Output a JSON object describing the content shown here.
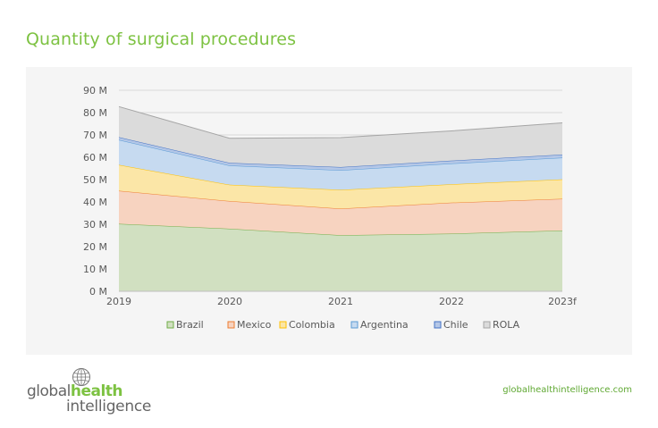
{
  "title": "Quantity of surgical procedures",
  "footer": {
    "logo_prefix": "global",
    "logo_emphasis": "health",
    "logo_second_line": "intelligence",
    "url": "globalhealthintelligence.com"
  },
  "chart_data": {
    "type": "area",
    "stacked": true,
    "categories": [
      "2019",
      "2020",
      "2021",
      "2022",
      "2023f"
    ],
    "ylim": [
      0,
      90
    ],
    "yticks": [
      "0 M",
      "10 M",
      "20 M",
      "30 M",
      "40 M",
      "50 M",
      "60 M",
      "70 M",
      "80 M",
      "90 M"
    ],
    "legend_position": "bottom",
    "grid": true,
    "series": [
      {
        "name": "Brazil",
        "values": [
          30.2,
          28.0,
          25.1,
          25.8,
          27.2
        ],
        "fill": "#d1e0c1",
        "stroke": "#70ad47"
      },
      {
        "name": "Mexico",
        "values": [
          14.8,
          12.4,
          11.9,
          13.9,
          14.2
        ],
        "fill": "#f7d3c0",
        "stroke": "#ed7d31"
      },
      {
        "name": "Colombia",
        "values": [
          11.6,
          7.3,
          8.4,
          8.2,
          8.7
        ],
        "fill": "#fbe6a7",
        "stroke": "#ffc000"
      },
      {
        "name": "Argentina",
        "values": [
          11.2,
          8.6,
          8.8,
          9.3,
          9.7
        ],
        "fill": "#c6daf0",
        "stroke": "#5b9bd5"
      },
      {
        "name": "Chile",
        "values": [
          1.2,
          1.2,
          1.4,
          1.3,
          1.4
        ],
        "fill": "#b4c7e7",
        "stroke": "#4472c4"
      },
      {
        "name": "ROLA",
        "values": [
          13.7,
          11.0,
          13.2,
          13.3,
          14.2
        ],
        "fill": "#dbdbdb",
        "stroke": "#a5a5a5"
      }
    ]
  }
}
